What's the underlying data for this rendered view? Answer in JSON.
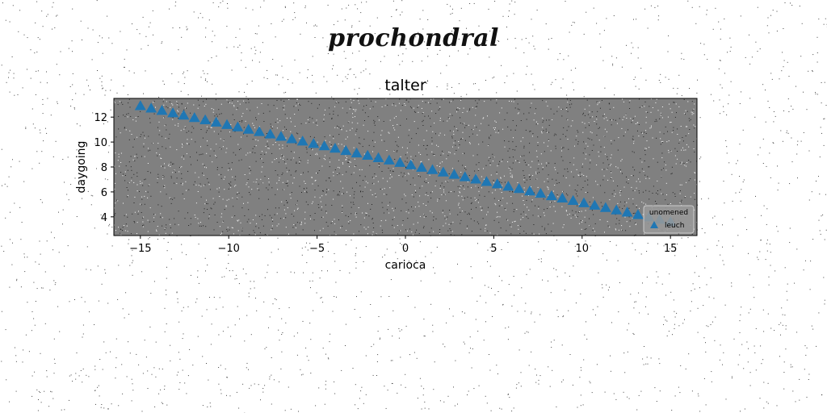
{
  "suptitle": "prochondral",
  "chart_data": {
    "type": "scatter",
    "title": "talter",
    "xlabel": "carioca",
    "ylabel": "daygoing",
    "xlim": [
      -16.5,
      16.5
    ],
    "ylim": [
      2.5,
      13.5
    ],
    "xticks": [
      -15,
      -10,
      -5,
      0,
      5,
      10,
      15
    ],
    "yticks": [
      4,
      6,
      8,
      10,
      12
    ],
    "grid": false,
    "background": "#808080",
    "marker": "triangle",
    "legend": {
      "title": "unomened",
      "placement": "lower-right"
    },
    "series": [
      {
        "name": "leuch",
        "color": "#1f77b4",
        "x": [
          -15.0,
          -14.39,
          -13.78,
          -13.16,
          -12.55,
          -11.94,
          -11.33,
          -10.71,
          -10.1,
          -9.49,
          -8.88,
          -8.27,
          -7.65,
          -7.04,
          -6.43,
          -5.82,
          -5.2,
          -4.59,
          -3.98,
          -3.37,
          -2.76,
          -2.14,
          -1.53,
          -0.92,
          -0.31,
          0.31,
          0.92,
          1.53,
          2.14,
          2.76,
          3.37,
          3.98,
          4.59,
          5.2,
          5.82,
          6.43,
          7.04,
          7.65,
          8.27,
          8.88,
          9.49,
          10.1,
          10.71,
          11.33,
          11.94,
          12.55,
          13.16,
          13.78,
          14.39,
          15.0
        ],
        "y": [
          12.9,
          12.71,
          12.52,
          12.33,
          12.14,
          11.95,
          11.77,
          11.58,
          11.39,
          11.2,
          11.01,
          10.82,
          10.63,
          10.44,
          10.25,
          10.06,
          9.87,
          9.68,
          9.49,
          9.3,
          9.11,
          8.92,
          8.73,
          8.54,
          8.35,
          8.15,
          7.96,
          7.77,
          7.58,
          7.39,
          7.2,
          7.01,
          6.82,
          6.63,
          6.44,
          6.25,
          6.06,
          5.87,
          5.68,
          5.49,
          5.3,
          5.11,
          4.92,
          4.73,
          4.54,
          4.36,
          4.17,
          3.98,
          3.79,
          3.6
        ]
      }
    ]
  }
}
